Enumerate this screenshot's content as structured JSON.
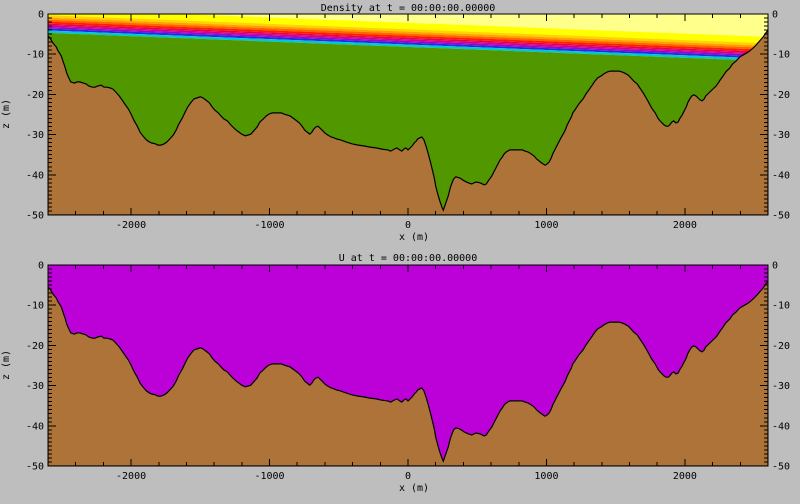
{
  "figure": {
    "background_color": "#BEBEBE",
    "text_color": "#000000"
  },
  "panels": [
    {
      "title": "Density at t = 00:00:00.00000",
      "xlabel": "x (m)",
      "ylabel": "z (m)"
    },
    {
      "title": "U at t = 00:00:00.00000",
      "xlabel": "x (m)",
      "ylabel": "z (m)"
    }
  ],
  "chart_data": [
    {
      "type": "area",
      "title": "Density at t = 00:00:00.00000",
      "xlabel": "x (m)",
      "ylabel": "z (m)",
      "xlim": [
        -2600,
        2600
      ],
      "ylim": [
        -50,
        0
      ],
      "x_ticks": [
        -2000,
        -1000,
        0,
        1000,
        2000
      ],
      "x_tick_labels": [
        "-2000",
        "-1000",
        "0",
        "1000",
        "2000"
      ],
      "x_minor_step_m": 200,
      "z_ticks": [
        0,
        -10,
        -20,
        -30,
        -40,
        -50
      ],
      "z_tick_labels": [
        "0",
        "-10",
        "-20",
        "-30",
        "-40",
        "-50"
      ],
      "z_minor_step_m": 1,
      "legend": "none",
      "grid": false,
      "surface_layer_color": "#FFFF8C",
      "deep_water_color": "#519700",
      "density_band_tilt_m_left_to_right": 7.0,
      "density_bands": [
        {
          "color": "#FFFF00",
          "top_depth_at_left_m": -1.3,
          "bottom_depth_at_left_m": 0.3
        },
        {
          "color": "#FFD200",
          "top_depth_at_left_m": 0.3,
          "bottom_depth_at_left_m": 0.9
        },
        {
          "color": "#FFA000",
          "top_depth_at_left_m": 0.9,
          "bottom_depth_at_left_m": 1.4
        },
        {
          "color": "#FF6400",
          "top_depth_at_left_m": 1.4,
          "bottom_depth_at_left_m": 1.9
        },
        {
          "color": "#FF1E00",
          "top_depth_at_left_m": 1.9,
          "bottom_depth_at_left_m": 2.4
        },
        {
          "color": "#E80050",
          "top_depth_at_left_m": 2.4,
          "bottom_depth_at_left_m": 2.8
        },
        {
          "color": "#D2008C",
          "top_depth_at_left_m": 2.8,
          "bottom_depth_at_left_m": 3.2
        },
        {
          "color": "#A000D2",
          "top_depth_at_left_m": 3.2,
          "bottom_depth_at_left_m": 3.6
        },
        {
          "color": "#2828E6",
          "top_depth_at_left_m": 3.6,
          "bottom_depth_at_left_m": 4.1
        },
        {
          "color": "#00C8D2",
          "top_depth_at_left_m": 4.1,
          "bottom_depth_at_left_m": 4.7
        }
      ],
      "terrain": {
        "color": "#AD7339",
        "outline_color": "#000000",
        "profile_x_z_m": [
          [
            -2600,
            -5.5
          ],
          [
            -2585,
            -6
          ],
          [
            -2565,
            -7.2
          ],
          [
            -2540,
            -8.2
          ],
          [
            -2530,
            -9
          ],
          [
            -2505,
            -10.4
          ],
          [
            -2490,
            -11.9
          ],
          [
            -2475,
            -13.4
          ],
          [
            -2465,
            -14.7
          ],
          [
            -2450,
            -15.9
          ],
          [
            -2435,
            -16.9
          ],
          [
            -2410,
            -17.2
          ],
          [
            -2390,
            -16.9
          ],
          [
            -2370,
            -16.9
          ],
          [
            -2345,
            -17.2
          ],
          [
            -2325,
            -17.4
          ],
          [
            -2305,
            -17.9
          ],
          [
            -2280,
            -18.2
          ],
          [
            -2260,
            -18.2
          ],
          [
            -2240,
            -17.9
          ],
          [
            -2215,
            -17.7
          ],
          [
            -2195,
            -18.2
          ],
          [
            -2175,
            -18.2
          ],
          [
            -2150,
            -18.4
          ],
          [
            -2130,
            -18.7
          ],
          [
            -2110,
            -19.4
          ],
          [
            -2085,
            -20.4
          ],
          [
            -2065,
            -21.4
          ],
          [
            -2045,
            -22.4
          ],
          [
            -2020,
            -23.6
          ],
          [
            -2000,
            -24.9
          ],
          [
            -1980,
            -26.4
          ],
          [
            -1955,
            -27.9
          ],
          [
            -1935,
            -29.4
          ],
          [
            -1915,
            -30.3
          ],
          [
            -1890,
            -31.3
          ],
          [
            -1870,
            -31.8
          ],
          [
            -1850,
            -32.1
          ],
          [
            -1825,
            -32.3
          ],
          [
            -1805,
            -32.6
          ],
          [
            -1785,
            -32.6
          ],
          [
            -1760,
            -32.3
          ],
          [
            -1740,
            -31.8
          ],
          [
            -1720,
            -31.1
          ],
          [
            -1695,
            -30.1
          ],
          [
            -1675,
            -28.9
          ],
          [
            -1655,
            -27.4
          ],
          [
            -1630,
            -25.9
          ],
          [
            -1610,
            -24.4
          ],
          [
            -1590,
            -23.1
          ],
          [
            -1565,
            -21.9
          ],
          [
            -1545,
            -21.1
          ],
          [
            -1525,
            -20.9
          ],
          [
            -1500,
            -20.6
          ],
          [
            -1480,
            -20.9
          ],
          [
            -1460,
            -21.4
          ],
          [
            -1435,
            -22.1
          ],
          [
            -1415,
            -23.1
          ],
          [
            -1395,
            -23.9
          ],
          [
            -1370,
            -24.6
          ],
          [
            -1350,
            -25.4
          ],
          [
            -1330,
            -26.1
          ],
          [
            -1305,
            -26.6
          ],
          [
            -1285,
            -27.4
          ],
          [
            -1265,
            -28.1
          ],
          [
            -1240,
            -28.9
          ],
          [
            -1220,
            -29.4
          ],
          [
            -1200,
            -29.9
          ],
          [
            -1175,
            -30.3
          ],
          [
            -1155,
            -30.1
          ],
          [
            -1135,
            -29.9
          ],
          [
            -1110,
            -28.9
          ],
          [
            -1090,
            -28.1
          ],
          [
            -1070,
            -26.9
          ],
          [
            -1045,
            -26.1
          ],
          [
            -1025,
            -25.4
          ],
          [
            -1005,
            -24.9
          ],
          [
            -980,
            -24.6
          ],
          [
            -915,
            -24.6
          ],
          [
            -895,
            -24.9
          ],
          [
            -875,
            -25.1
          ],
          [
            -850,
            -25.4
          ],
          [
            -830,
            -25.9
          ],
          [
            -810,
            -26.4
          ],
          [
            -785,
            -27.1
          ],
          [
            -765,
            -27.9
          ],
          [
            -745,
            -28.9
          ],
          [
            -720,
            -29.6
          ],
          [
            -710,
            -29.9
          ],
          [
            -695,
            -29.4
          ],
          [
            -680,
            -28.6
          ],
          [
            -665,
            -28.1
          ],
          [
            -650,
            -27.9
          ],
          [
            -635,
            -28.4
          ],
          [
            -620,
            -28.9
          ],
          [
            -600,
            -29.6
          ],
          [
            -580,
            -30.1
          ],
          [
            -555,
            -30.6
          ],
          [
            -535,
            -30.8
          ],
          [
            -515,
            -31.1
          ],
          [
            -490,
            -31.3
          ],
          [
            -450,
            -31.8
          ],
          [
            -405,
            -32.3
          ],
          [
            -360,
            -32.6
          ],
          [
            -320,
            -32.8
          ],
          [
            -275,
            -33.1
          ],
          [
            -230,
            -33.3
          ],
          [
            -190,
            -33.6
          ],
          [
            -145,
            -33.8
          ],
          [
            -125,
            -34.1
          ],
          [
            -100,
            -33.6
          ],
          [
            -80,
            -33.3
          ],
          [
            -60,
            -33.8
          ],
          [
            -45,
            -34.1
          ],
          [
            -30,
            -33.6
          ],
          [
            -15,
            -33.3
          ],
          [
            0,
            -33.8
          ],
          [
            15,
            -33.3
          ],
          [
            30,
            -32.8
          ],
          [
            45,
            -32.1
          ],
          [
            60,
            -31.6
          ],
          [
            70,
            -31.1
          ],
          [
            85,
            -30.8
          ],
          [
            100,
            -30.6
          ],
          [
            115,
            -31.3
          ],
          [
            130,
            -32.8
          ],
          [
            145,
            -34.6
          ],
          [
            160,
            -36.6
          ],
          [
            175,
            -38.6
          ],
          [
            190,
            -40.8
          ],
          [
            200,
            -42.8
          ],
          [
            215,
            -44.8
          ],
          [
            230,
            -46.5
          ],
          [
            245,
            -48
          ],
          [
            255,
            -48.8
          ],
          [
            260,
            -48.3
          ],
          [
            275,
            -46.8
          ],
          [
            290,
            -45.3
          ],
          [
            305,
            -43.3
          ],
          [
            320,
            -41.8
          ],
          [
            330,
            -41
          ],
          [
            345,
            -40.5
          ],
          [
            375,
            -40.8
          ],
          [
            405,
            -41.5
          ],
          [
            435,
            -42
          ],
          [
            460,
            -42.3
          ],
          [
            490,
            -41.8
          ],
          [
            520,
            -42
          ],
          [
            550,
            -42.5
          ],
          [
            565,
            -42.3
          ],
          [
            580,
            -41.5
          ],
          [
            590,
            -41
          ],
          [
            605,
            -40.3
          ],
          [
            620,
            -39.3
          ],
          [
            635,
            -38.3
          ],
          [
            650,
            -37.3
          ],
          [
            665,
            -36.3
          ],
          [
            680,
            -35.6
          ],
          [
            695,
            -34.8
          ],
          [
            710,
            -34.3
          ],
          [
            720,
            -34.1
          ],
          [
            735,
            -33.8
          ],
          [
            825,
            -33.8
          ],
          [
            845,
            -34.1
          ],
          [
            865,
            -34.3
          ],
          [
            890,
            -34.8
          ],
          [
            910,
            -35.3
          ],
          [
            930,
            -36.1
          ],
          [
            955,
            -36.8
          ],
          [
            975,
            -37.3
          ],
          [
            990,
            -37.6
          ],
          [
            1005,
            -37.3
          ],
          [
            1020,
            -36.8
          ],
          [
            1035,
            -35.8
          ],
          [
            1045,
            -34.8
          ],
          [
            1060,
            -33.8
          ],
          [
            1075,
            -32.8
          ],
          [
            1090,
            -31.8
          ],
          [
            1105,
            -30.8
          ],
          [
            1120,
            -29.9
          ],
          [
            1135,
            -28.9
          ],
          [
            1150,
            -27.6
          ],
          [
            1165,
            -26.6
          ],
          [
            1180,
            -25.6
          ],
          [
            1190,
            -24.6
          ],
          [
            1205,
            -23.9
          ],
          [
            1220,
            -23.1
          ],
          [
            1240,
            -22.1
          ],
          [
            1265,
            -21.1
          ],
          [
            1285,
            -19.9
          ],
          [
            1310,
            -18.7
          ],
          [
            1330,
            -17.7
          ],
          [
            1350,
            -16.7
          ],
          [
            1370,
            -15.9
          ],
          [
            1395,
            -15.4
          ],
          [
            1415,
            -14.9
          ],
          [
            1440,
            -14.4
          ],
          [
            1460,
            -14.2
          ],
          [
            1525,
            -14.2
          ],
          [
            1545,
            -14.4
          ],
          [
            1565,
            -14.7
          ],
          [
            1590,
            -15.2
          ],
          [
            1610,
            -15.9
          ],
          [
            1630,
            -16.7
          ],
          [
            1655,
            -17.4
          ],
          [
            1675,
            -18.4
          ],
          [
            1700,
            -19.7
          ],
          [
            1720,
            -20.9
          ],
          [
            1740,
            -22.1
          ],
          [
            1760,
            -23.4
          ],
          [
            1785,
            -24.6
          ],
          [
            1805,
            -25.9
          ],
          [
            1820,
            -26.6
          ],
          [
            1835,
            -27.1
          ],
          [
            1850,
            -27.6
          ],
          [
            1865,
            -27.9
          ],
          [
            1880,
            -27.9
          ],
          [
            1890,
            -27.6
          ],
          [
            1905,
            -26.9
          ],
          [
            1920,
            -26.6
          ],
          [
            1935,
            -27.1
          ],
          [
            1950,
            -26.9
          ],
          [
            1965,
            -25.9
          ],
          [
            1980,
            -25.1
          ],
          [
            1995,
            -24.1
          ],
          [
            2010,
            -23.1
          ],
          [
            2020,
            -22.1
          ],
          [
            2035,
            -21.1
          ],
          [
            2050,
            -20.4
          ],
          [
            2065,
            -20.1
          ],
          [
            2080,
            -20.4
          ],
          [
            2095,
            -20.9
          ],
          [
            2110,
            -21.4
          ],
          [
            2125,
            -21.6
          ],
          [
            2140,
            -21.1
          ],
          [
            2150,
            -20.4
          ],
          [
            2165,
            -19.9
          ],
          [
            2180,
            -19.4
          ],
          [
            2195,
            -18.9
          ],
          [
            2210,
            -18.4
          ],
          [
            2225,
            -17.9
          ],
          [
            2240,
            -17.2
          ],
          [
            2255,
            -16.4
          ],
          [
            2270,
            -15.7
          ],
          [
            2280,
            -15.2
          ],
          [
            2295,
            -14.4
          ],
          [
            2310,
            -13.9
          ],
          [
            2325,
            -13.4
          ],
          [
            2345,
            -12.4
          ],
          [
            2370,
            -11.7
          ],
          [
            2390,
            -10.9
          ],
          [
            2410,
            -10.4
          ],
          [
            2435,
            -9.9
          ],
          [
            2455,
            -9.5
          ],
          [
            2475,
            -9
          ],
          [
            2500,
            -8.2
          ],
          [
            2520,
            -7.5
          ],
          [
            2540,
            -6.7
          ],
          [
            2565,
            -5.7
          ],
          [
            2585,
            -4.7
          ],
          [
            2600,
            -4
          ]
        ]
      }
    },
    {
      "type": "area",
      "title": "U at t = 00:00:00.00000",
      "xlabel": "x (m)",
      "ylabel": "z (m)",
      "xlim": [
        -2600,
        2600
      ],
      "ylim": [
        -50,
        0
      ],
      "x_ticks": [
        -2000,
        -1000,
        0,
        1000,
        2000
      ],
      "x_tick_labels": [
        "-2000",
        "-1000",
        "0",
        "1000",
        "2000"
      ],
      "x_minor_step_m": 200,
      "z_ticks": [
        0,
        -10,
        -20,
        -30,
        -40,
        -50
      ],
      "z_tick_labels": [
        "0",
        "-10",
        "-20",
        "-30",
        "-40",
        "-50"
      ],
      "z_minor_step_m": 1,
      "legend": "none",
      "grid": false,
      "water_fill_color": "#BC00D8",
      "terrain": {
        "color": "#AD7339",
        "outline_color": "#000000",
        "profile": "same bathymetry profile as Density panel (chart_data[0].terrain.profile_x_z_m)"
      }
    }
  ]
}
